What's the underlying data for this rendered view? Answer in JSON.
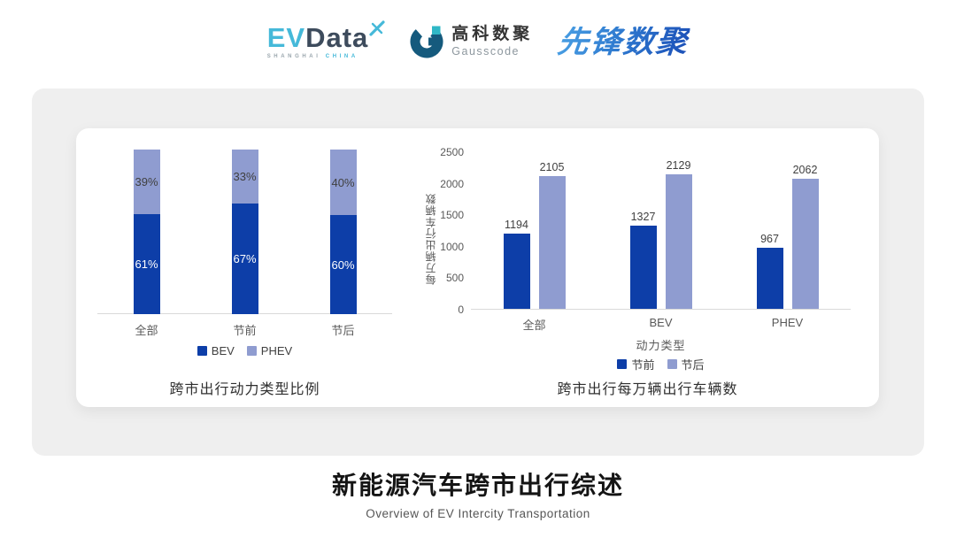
{
  "header": {
    "evdata": {
      "ev": "EV",
      "data": "Data",
      "tagline_left": "SHANGHAI",
      "tagline_right": "CHINA",
      "color_primary": "#45b9d9",
      "color_dark": "#3d4b5c"
    },
    "gausscode": {
      "cn": "高科数聚",
      "en": "Gausscode",
      "mark_color": "#155a7d",
      "mark_accent": "#2fb7c6"
    },
    "pioneer": {
      "text": "先锋数聚",
      "color_from": "#4aa0e4",
      "color_to": "#1c50b8"
    }
  },
  "colors": {
    "series_dark_blue": "#0d3ea8",
    "series_light_blue": "#8f9cd0",
    "panel_gray": "#efefef",
    "axis_gray": "#d9d9d9"
  },
  "chart_data": [
    {
      "type": "bar",
      "variant": "stacked-percent",
      "title": "跨市出行动力类型比例",
      "categories": [
        "全部",
        "节前",
        "节后"
      ],
      "series": [
        {
          "name": "BEV",
          "color": "#0d3ea8",
          "values": [
            61,
            67,
            60
          ],
          "unit": "%",
          "label_color": "#ffffff"
        },
        {
          "name": "PHEV",
          "color": "#8f9cd0",
          "values": [
            39,
            33,
            40
          ],
          "unit": "%",
          "label_color": "#404040"
        }
      ],
      "ylim": [
        0,
        100
      ],
      "grid": false,
      "legend_position": "bottom"
    },
    {
      "type": "bar",
      "variant": "grouped",
      "title": "跨市出行每万辆出行车辆数",
      "categories": [
        "全部",
        "BEV",
        "PHEV"
      ],
      "xlabel": "动力类型",
      "ylabel": "每万辆出行车辆数",
      "ylim": [
        0,
        2500
      ],
      "yticks": [
        0,
        500,
        1000,
        1500,
        2000,
        2500
      ],
      "series": [
        {
          "name": "节前",
          "color": "#0d3ea8",
          "values": [
            1194,
            1327,
            967
          ]
        },
        {
          "name": "节后",
          "color": "#8f9cd0",
          "values": [
            2105,
            2129,
            2062
          ]
        }
      ],
      "grid": false,
      "legend_position": "bottom"
    }
  ],
  "footer": {
    "title": "新能源汽车跨市出行综述",
    "subtitle": "Overview of EV Intercity Transportation"
  }
}
